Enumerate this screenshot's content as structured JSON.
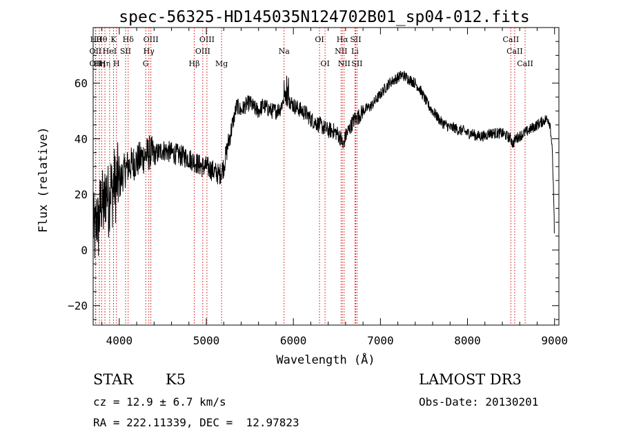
{
  "chart_data": {
    "type": "line",
    "title": "spec-56325-HD145035N124702B01_sp04-012.fits",
    "xlabel": "Wavelength (Å)",
    "ylabel": "Flux (relative)",
    "xlim": [
      3700,
      9050
    ],
    "ylim": [
      -27,
      80
    ],
    "x_ticks": [
      4000,
      5000,
      6000,
      7000,
      8000,
      9000
    ],
    "y_ticks": [
      -20,
      0,
      20,
      40,
      60
    ],
    "grid": false,
    "line_color": "#000000",
    "marker_color": "#cc0000",
    "series": [
      {
        "x": [
          3700,
          3720,
          3740,
          3760,
          3780,
          3800,
          3820,
          3840,
          3860,
          3880,
          3900,
          3920,
          3940,
          3960,
          3980,
          4000,
          4050,
          4100,
          4150,
          4200,
          4250,
          4300,
          4350,
          4400,
          4450,
          4500,
          4600,
          4700,
          4800,
          4850,
          4900,
          4950,
          5000,
          5050,
          5100,
          5150,
          5200,
          5250,
          5300,
          5350,
          5400,
          5450,
          5500,
          5550,
          5600,
          5650,
          5700,
          5750,
          5800,
          5850,
          5900,
          5950,
          6000,
          6050,
          6100,
          6150,
          6200,
          6250,
          6300,
          6350,
          6400,
          6450,
          6500,
          6550,
          6570,
          6600,
          6650,
          6700,
          6750,
          6800,
          6850,
          6900,
          6950,
          7000,
          7050,
          7100,
          7150,
          7200,
          7250,
          7300,
          7350,
          7400,
          7450,
          7500,
          7550,
          7600,
          7650,
          7700,
          7750,
          7800,
          7850,
          7900,
          7950,
          8000,
          8050,
          8100,
          8150,
          8200,
          8250,
          8300,
          8350,
          8400,
          8450,
          8500,
          8520,
          8550,
          8600,
          8650,
          8700,
          8750,
          8800,
          8850,
          8900,
          8930,
          8950,
          8970,
          8990,
          9000
        ],
        "y": [
          10,
          5,
          12,
          8,
          15,
          18,
          14,
          20,
          22,
          16,
          24,
          20,
          25,
          22,
          26,
          24,
          28,
          30,
          31,
          32,
          33,
          34,
          35,
          34,
          35,
          36,
          35,
          34,
          33,
          32,
          31,
          30,
          30,
          29,
          28,
          27,
          30,
          38,
          45,
          52,
          50,
          52,
          53,
          51,
          50,
          52,
          51,
          50,
          50,
          51,
          55,
          54,
          52,
          51,
          50,
          49,
          47,
          46,
          45,
          44,
          43,
          43,
          42,
          40,
          37,
          41,
          44,
          47,
          48,
          50,
          51,
          52,
          54,
          56,
          58,
          60,
          61,
          62,
          63,
          62,
          61,
          60,
          58,
          55,
          52,
          50,
          48,
          46,
          45,
          44,
          44,
          43,
          43,
          42,
          42,
          41,
          41,
          41,
          42,
          42,
          42,
          42,
          41,
          40,
          38,
          40,
          41,
          42,
          43,
          44,
          45,
          46,
          47,
          47,
          45,
          38,
          20,
          2
        ]
      }
    ],
    "line_markers": [
      {
        "x": 3730,
        "label": "Hθ",
        "row": 0
      },
      {
        "x": 3727,
        "label": "OII",
        "row": 1
      },
      {
        "x": 3727,
        "label": "OII",
        "row": 2
      },
      {
        "x": 3771,
        "label": "Hη",
        "row": 2
      },
      {
        "x": 3798,
        "label": "Hθ",
        "row": 0
      },
      {
        "x": 3835,
        "label": "Hη",
        "row": 2
      },
      {
        "x": 3889,
        "label": "HeI",
        "row": 1
      },
      {
        "x": 3934,
        "label": "K",
        "row": 0
      },
      {
        "x": 3968,
        "label": "H",
        "row": 2
      },
      {
        "x": 4072,
        "label": "SII",
        "row": 1
      },
      {
        "x": 4102,
        "label": "Hδ",
        "row": 0
      },
      {
        "x": 4304,
        "label": "G",
        "row": 2
      },
      {
        "x": 4340,
        "label": "Hγ",
        "row": 1
      },
      {
        "x": 4363,
        "label": "OIII",
        "row": 0
      },
      {
        "x": 4861,
        "label": "Hβ",
        "row": 2
      },
      {
        "x": 4959,
        "label": "OIII",
        "row": 1
      },
      {
        "x": 5007,
        "label": "OIII",
        "row": 0
      },
      {
        "x": 5175,
        "label": "Mg",
        "row": 2
      },
      {
        "x": 5893,
        "label": "Na",
        "row": 1
      },
      {
        "x": 6300,
        "label": "OI",
        "row": 0
      },
      {
        "x": 6364,
        "label": "OI",
        "row": 2
      },
      {
        "x": 6548,
        "label": "NII",
        "row": 1
      },
      {
        "x": 6563,
        "label": "Hα",
        "row": 0
      },
      {
        "x": 6583,
        "label": "NII",
        "row": 2
      },
      {
        "x": 6707,
        "label": "Li",
        "row": 1
      },
      {
        "x": 6716,
        "label": "SII",
        "row": 0
      },
      {
        "x": 6731,
        "label": "SII",
        "row": 2
      },
      {
        "x": 8498,
        "label": "CaII",
        "row": 0
      },
      {
        "x": 8542,
        "label": "CaII",
        "row": 1
      },
      {
        "x": 8662,
        "label": "CaII",
        "row": 2
      }
    ]
  },
  "footer": {
    "object_class": "STAR",
    "subclass": "K5",
    "survey": "LAMOST DR3",
    "cz": "cz = 12.9 ± 6.7 km/s",
    "obs_date": "Obs-Date: 20130201",
    "coords": "RA = 222.11339, DEC =  12.97823"
  }
}
